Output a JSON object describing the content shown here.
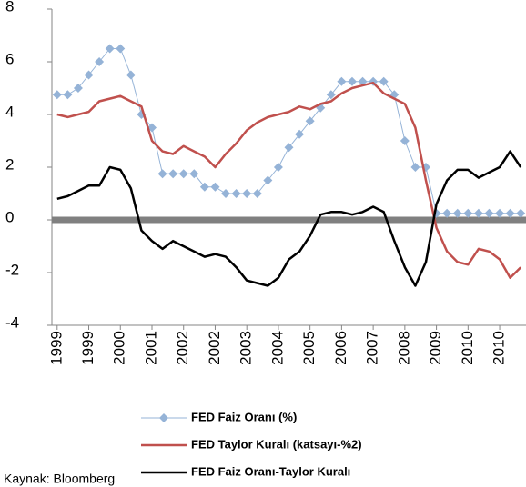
{
  "chart_data": {
    "type": "line",
    "categories": [
      "1999",
      null,
      null,
      "1999",
      null,
      null,
      "2000",
      null,
      null,
      "2001",
      null,
      null,
      "2002",
      null,
      null,
      "2002",
      null,
      null,
      "2003",
      null,
      null,
      "2004",
      null,
      null,
      "2005",
      null,
      null,
      "2006",
      null,
      null,
      "2007",
      null,
      null,
      "2008",
      null,
      null,
      "2009",
      null,
      null,
      "2010",
      null,
      null,
      "2010",
      null,
      null
    ],
    "series": [
      {
        "name": "FED Faiz Oranı (%)",
        "color": "#95b3d7",
        "marker": "diamond",
        "values": [
          4.75,
          4.75,
          5.0,
          5.5,
          6.0,
          6.5,
          6.5,
          5.5,
          4.0,
          3.5,
          1.75,
          1.75,
          1.75,
          1.75,
          1.25,
          1.25,
          1.0,
          1.0,
          1.0,
          1.0,
          1.5,
          2.0,
          2.75,
          3.25,
          3.75,
          4.25,
          4.75,
          5.25,
          5.25,
          5.25,
          5.25,
          5.25,
          4.75,
          3.0,
          2.0,
          2.0,
          0.25,
          0.25,
          0.25,
          0.25,
          0.25,
          0.25,
          0.25,
          0.25,
          0.25
        ]
      },
      {
        "name": "FED Taylor Kuralı (katsayı-%2)",
        "color": "#c0504d",
        "values": [
          4.0,
          3.9,
          4.0,
          4.1,
          4.5,
          4.6,
          4.7,
          4.5,
          4.3,
          3.0,
          2.6,
          2.5,
          2.8,
          2.6,
          2.4,
          2.0,
          2.5,
          2.9,
          3.4,
          3.7,
          3.9,
          4.0,
          4.1,
          4.3,
          4.2,
          4.4,
          4.5,
          4.8,
          5.0,
          5.1,
          5.2,
          4.8,
          4.6,
          4.4,
          3.5,
          1.5,
          -0.3,
          -1.2,
          -1.6,
          -1.7,
          -1.1,
          -1.2,
          -1.5,
          -2.2,
          -1.8
        ]
      },
      {
        "name": "FED Faiz Oranı-Taylor Kuralı",
        "color": "#000000",
        "values": [
          0.8,
          0.9,
          1.1,
          1.3,
          1.3,
          2.0,
          1.9,
          1.2,
          -0.4,
          -0.8,
          -1.1,
          -0.8,
          -1.0,
          -1.2,
          -1.4,
          -1.3,
          -1.4,
          -1.8,
          -2.3,
          -2.4,
          -2.5,
          -2.2,
          -1.5,
          -1.2,
          -0.6,
          0.2,
          0.3,
          0.3,
          0.2,
          0.3,
          0.5,
          0.3,
          -0.8,
          -1.8,
          -2.5,
          -1.6,
          0.6,
          1.5,
          1.9,
          1.9,
          1.6,
          1.8,
          2.0,
          2.6,
          2.0
        ]
      }
    ],
    "ylim": [
      -4,
      8
    ],
    "yticks": [
      -4,
      -2,
      0,
      2,
      4,
      6,
      8
    ],
    "zero_line_color": "#808080",
    "source": "Kaynak: Bloomberg"
  }
}
